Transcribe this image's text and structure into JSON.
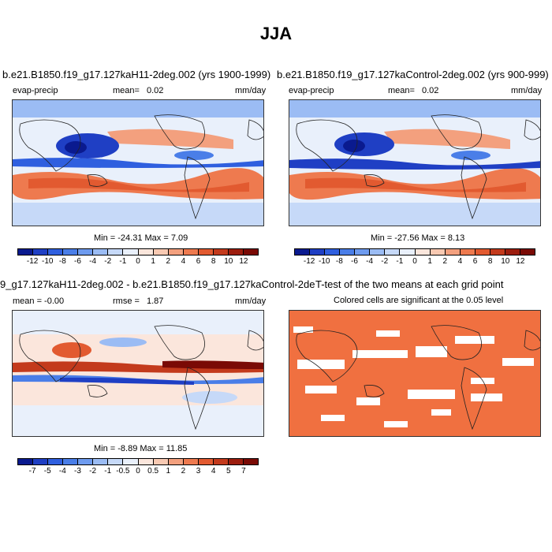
{
  "title": "JJA",
  "panel1": {
    "title": "b.e21.B1850.f19_g17.127kaH11-2deg.002 (yrs 1900-1999)",
    "var": "evap-precip",
    "mean_label": "mean=",
    "mean": "0.02",
    "units": "mm/day",
    "minmax": "Min = -24.31 Max =  7.09"
  },
  "panel2": {
    "title": "b.e21.B1850.f19_g17.127kaControl-2deg.002 (yrs 900-999)",
    "var": "evap-precip",
    "mean_label": "mean=",
    "mean": "0.02",
    "units": "mm/day",
    "minmax": "Min = -27.56 Max =  8.13"
  },
  "panel3": {
    "title": "9_g17.127kaH11-2deg.002 - b.e21.B1850.f19_g17.127kaControl-2deg.002",
    "mean_text": "mean = -0.00",
    "rmse_label": "rmse =",
    "rmse": "1.87",
    "units": "mm/day",
    "minmax": "Min =  -8.89 Max = 11.85"
  },
  "panel4": {
    "title": "T-test of the two means at each grid point",
    "subtitle": "Colored cells are significant at the 0.05 level"
  },
  "colorbar_top": {
    "labels": [
      "-12",
      "-10",
      "-8",
      "-6",
      "-4",
      "-2",
      "-1",
      "0",
      "1",
      "2",
      "4",
      "6",
      "8",
      "10",
      "12"
    ],
    "colors": [
      "#0a1a8f",
      "#1f3fc4",
      "#2f5fdf",
      "#4a7ee8",
      "#6e9bef",
      "#9bbcf4",
      "#c6d9f8",
      "#e9f0fb",
      "#fbe6dc",
      "#f8c9b2",
      "#f3a07e",
      "#ee7a4f",
      "#e25a30",
      "#c33a1c",
      "#9c1d0e",
      "#7a0a05"
    ]
  },
  "colorbar_diff": {
    "labels": [
      "-7",
      "-5",
      "-4",
      "-3",
      "-2",
      "-1",
      "-0.5",
      "0",
      "0.5",
      "1",
      "2",
      "3",
      "4",
      "5",
      "7"
    ],
    "colors": [
      "#0a1a8f",
      "#1f3fc4",
      "#2f5fdf",
      "#4a7ee8",
      "#6e9bef",
      "#9bbcf4",
      "#c6d9f8",
      "#e9f0fb",
      "#fbe6dc",
      "#f8c9b2",
      "#f3a07e",
      "#ee7a4f",
      "#e25a30",
      "#c33a1c",
      "#9c1d0e",
      "#7a0a05"
    ]
  },
  "ttest_color": "#f07040"
}
